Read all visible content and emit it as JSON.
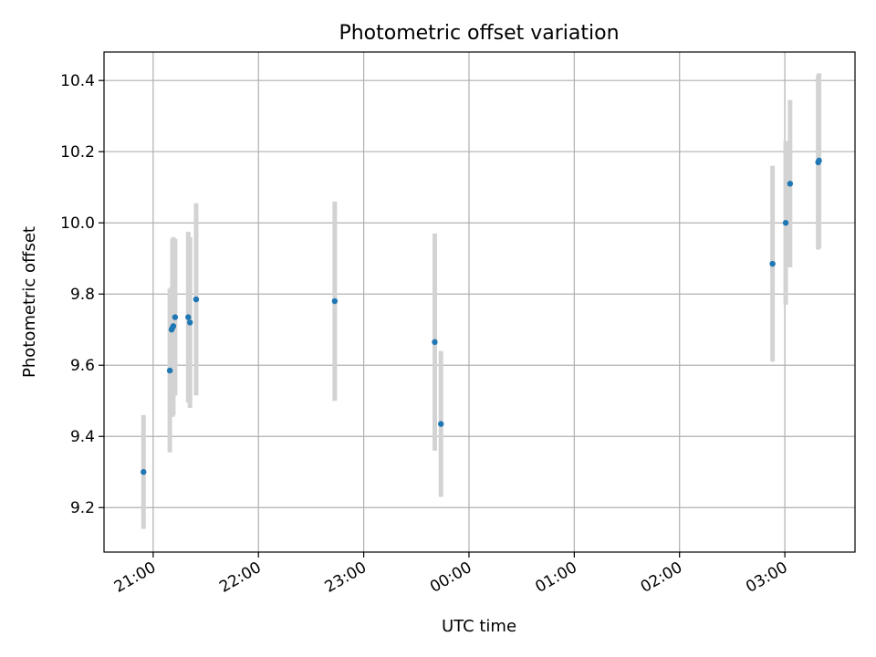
{
  "chart_data": {
    "type": "scatter",
    "title": "Photometric offset variation",
    "xlabel": "UTC time",
    "ylabel": "Photometric offset",
    "xlim": [
      "2000-01-01T20:32:00",
      "2000-01-02T03:40:00"
    ],
    "ylim": [
      9.075,
      10.48
    ],
    "grid": true,
    "x_ticks": [
      {
        "time": "2000-01-01T21:00:00",
        "label": "21:00"
      },
      {
        "time": "2000-01-01T22:00:00",
        "label": "22:00"
      },
      {
        "time": "2000-01-01T23:00:00",
        "label": "23:00"
      },
      {
        "time": "2000-01-02T00:00:00",
        "label": "00:00"
      },
      {
        "time": "2000-01-02T01:00:00",
        "label": "01:00"
      },
      {
        "time": "2000-01-02T02:00:00",
        "label": "02:00"
      },
      {
        "time": "2000-01-02T03:00:00",
        "label": "03:00"
      }
    ],
    "y_ticks": [
      {
        "value": 9.2,
        "label": "9.2"
      },
      {
        "value": 9.4,
        "label": "9.4"
      },
      {
        "value": 9.6,
        "label": "9.6"
      },
      {
        "value": 9.8,
        "label": "9.8"
      },
      {
        "value": 10.0,
        "label": "10.0"
      },
      {
        "value": 10.2,
        "label": "10.2"
      },
      {
        "value": 10.4,
        "label": "10.4"
      }
    ],
    "marker_color": "#1f77b4",
    "errorbar_color": "#d3d3d3",
    "points": [
      {
        "time": "2000-01-01T20:54:30",
        "y": 9.3,
        "err": 0.16
      },
      {
        "time": "2000-01-01T21:09:30",
        "y": 9.585,
        "err": 0.23
      },
      {
        "time": "2000-01-01T21:10:30",
        "y": 9.7,
        "err": 0.12
      },
      {
        "time": "2000-01-01T21:11:00",
        "y": 9.705,
        "err": 0.25
      },
      {
        "time": "2000-01-01T21:11:30",
        "y": 9.71,
        "err": 0.25
      },
      {
        "time": "2000-01-01T21:12:30",
        "y": 9.735,
        "err": 0.22
      },
      {
        "time": "2000-01-01T21:20:00",
        "y": 9.735,
        "err": 0.24
      },
      {
        "time": "2000-01-01T21:21:00",
        "y": 9.72,
        "err": 0.24
      },
      {
        "time": "2000-01-01T21:24:30",
        "y": 9.785,
        "err": 0.27
      },
      {
        "time": "2000-01-01T22:43:30",
        "y": 9.78,
        "err": 0.28
      },
      {
        "time": "2000-01-01T23:40:30",
        "y": 9.665,
        "err": 0.305
      },
      {
        "time": "2000-01-01T23:44:00",
        "y": 9.435,
        "err": 0.205
      },
      {
        "time": "2000-01-02T02:53:00",
        "y": 9.885,
        "err": 0.275
      },
      {
        "time": "2000-01-02T03:00:30",
        "y": 10.0,
        "err": 0.23
      },
      {
        "time": "2000-01-02T03:03:00",
        "y": 10.11,
        "err": 0.235
      },
      {
        "time": "2000-01-02T03:19:00",
        "y": 10.17,
        "err": 0.245
      },
      {
        "time": "2000-01-02T03:19:30",
        "y": 10.175,
        "err": 0.245
      }
    ]
  }
}
